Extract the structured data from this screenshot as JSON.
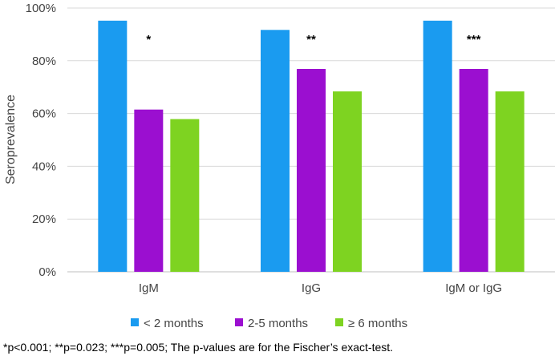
{
  "chart_data": {
    "type": "bar",
    "categories": [
      "IgM",
      "IgG",
      "IgM or IgG"
    ],
    "series": [
      {
        "name": "< 2 months",
        "values": [
          95.2,
          91.7,
          95.2
        ],
        "color": "#1a9bf0"
      },
      {
        "name": "2-5 months",
        "values": [
          61.5,
          76.9,
          76.9
        ],
        "color": "#9b0fd0"
      },
      {
        "name": "≥ 6 months",
        "values": [
          57.9,
          68.4,
          68.4
        ],
        "color": "#7ed321"
      }
    ],
    "annotations": [
      "*",
      "**",
      "***"
    ],
    "ylabel": "Seroprevalence",
    "xlabel": "",
    "ylim": [
      0,
      100
    ],
    "yticks": [
      "0%",
      "20%",
      "40%",
      "60%",
      "80%",
      "100%"
    ],
    "grid": true,
    "legend": "bottom"
  },
  "footnote": "*p<0.001; **p=0.023; ***p=0.005; The p-values are for the Fischer’s exact-test."
}
